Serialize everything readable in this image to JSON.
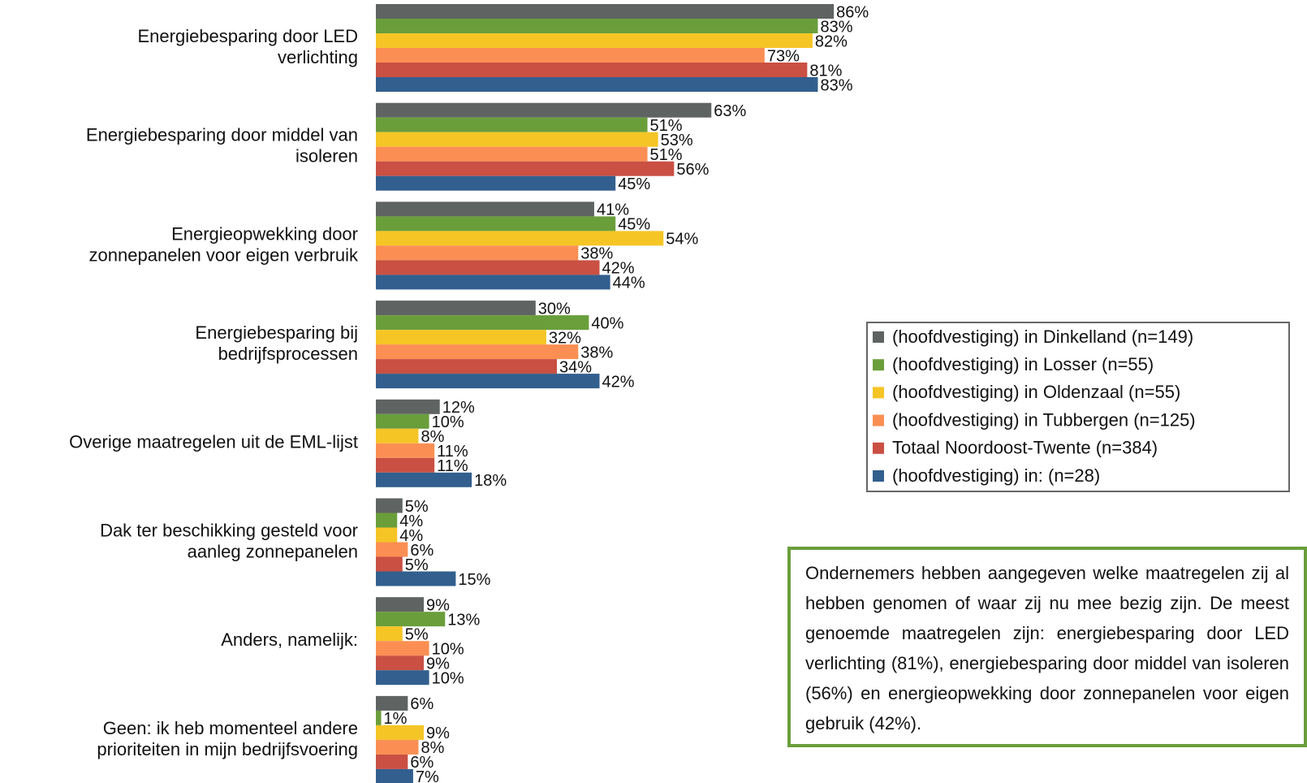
{
  "chart_data": {
    "type": "bar",
    "orientation": "horizontal",
    "categories": [
      "Energiebesparing door LED\nverlichting",
      "Energiebesparing door middel van\nisoleren",
      "Energieopwekking door\nzonnepanelen voor eigen verbruik",
      "Energiebesparing bij\nbedrijfsprocessen",
      "Overige maatregelen uit de EML-lijst",
      "Dak ter beschikking gesteld voor\naanleg zonnepanelen",
      "Anders, namelijk:",
      "Geen: ik heb momenteel andere\nprioriteiten in mijn bedrijfsvoering"
    ],
    "series": [
      {
        "name": "(hoofdvestiging) in Dinkelland (n=149)",
        "color": "#5f6462",
        "values": [
          86,
          63,
          41,
          30,
          12,
          5,
          9,
          6
        ],
        "value_labels": [
          "86%",
          "63%",
          "41%",
          "30%",
          "12%",
          "5%",
          "9%",
          "6%"
        ]
      },
      {
        "name": "(hoofdvestiging) in Losser (n=55)",
        "color": "#6a9e3b",
        "values": [
          83,
          51,
          45,
          40,
          10,
          4,
          13,
          1
        ],
        "value_labels": [
          "83%",
          "51%",
          "45%",
          "40%",
          "10%",
          "4%",
          "13%",
          "1%"
        ]
      },
      {
        "name": "(hoofdvestiging) in Oldenzaal (n=55)",
        "color": "#f5c526",
        "values": [
          82,
          53,
          54,
          32,
          8,
          4,
          5,
          9
        ],
        "value_labels": [
          "82%",
          "53%",
          "54%",
          "32%",
          "8%",
          "4%",
          "5%",
          "9%"
        ]
      },
      {
        "name": "(hoofdvestiging) in Tubbergen (n=125)",
        "color": "#fb8f53",
        "values": [
          73,
          51,
          38,
          38,
          11,
          6,
          10,
          8
        ],
        "value_labels": [
          "73%",
          "51%",
          "38%",
          "38%",
          "11%",
          "6%",
          "10%",
          "8%"
        ]
      },
      {
        "name": "Totaal Noordoost-Twente (n=384)",
        "color": "#c95043",
        "values": [
          81,
          56,
          42,
          34,
          11,
          5,
          9,
          6
        ],
        "value_labels": [
          "81%",
          "56%",
          "42%",
          "34%",
          "11%",
          "5%",
          "9%",
          "6%"
        ]
      },
      {
        "name": "(hoofdvestiging) in: (n=28)",
        "color": "#325f8e",
        "values": [
          83,
          45,
          44,
          42,
          18,
          15,
          10,
          7
        ],
        "value_labels": [
          "83%",
          "45%",
          "44%",
          "42%",
          "18%",
          "15%",
          "10%",
          "7%"
        ]
      }
    ],
    "xlim": [
      0,
      100
    ],
    "legend": "right"
  },
  "text_box": {
    "text": "Ondernemers hebben aangegeven welke maatregelen zij al hebben genomen of waar zij nu mee bezig zijn. De meest genoemde maatregelen zijn: energiebesparing door LED verlichting (81%), energiebesparing door middel van isoleren (56%) en energieopwekking door zonnepanelen voor eigen gebruik (42%)."
  }
}
